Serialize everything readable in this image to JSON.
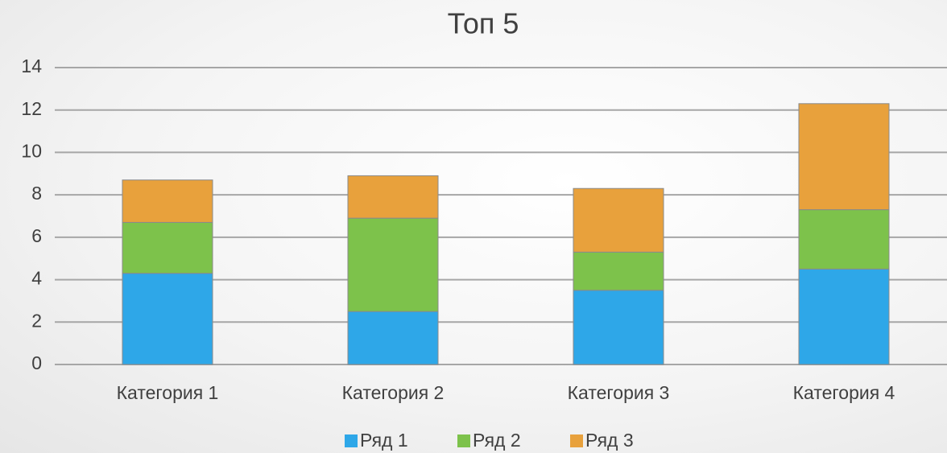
{
  "chart_data": {
    "type": "stacked_bar",
    "title": "Топ 5",
    "categories": [
      "Категория 1",
      "Категория 2",
      "Категория 3",
      "Категория 4"
    ],
    "series": [
      {
        "name": "Ряд 1",
        "color": "#2ea7e8",
        "values": [
          4.3,
          2.5,
          3.5,
          4.5
        ]
      },
      {
        "name": "Ряд 2",
        "color": "#7dc24b",
        "values": [
          2.4,
          4.4,
          1.8,
          2.8
        ]
      },
      {
        "name": "Ряд 3",
        "color": "#e8a13c",
        "values": [
          2,
          2,
          3,
          5
        ]
      }
    ],
    "ylim": [
      0,
      14
    ],
    "yticks": [
      0,
      2,
      4,
      6,
      8,
      10,
      12,
      14
    ],
    "grid": true,
    "legend": "bottom"
  }
}
